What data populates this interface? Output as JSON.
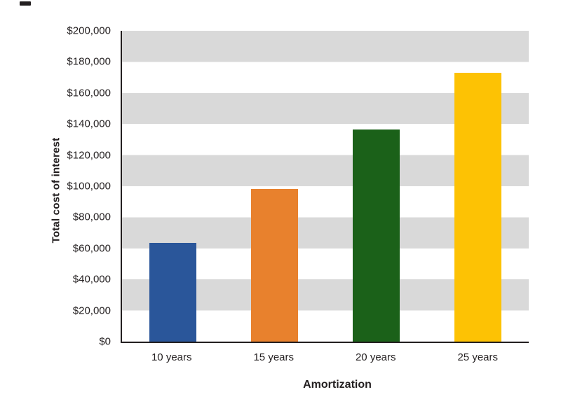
{
  "figure": {
    "background": "#ffffff",
    "text_color": "#231f20",
    "axis_color": "#231f20",
    "stripe_color": "#d9d9d9",
    "stripe_alt_color": "#ffffff"
  },
  "chart_data": {
    "type": "bar",
    "title": "",
    "categories": [
      "10 years",
      "15 years",
      "20 years",
      "25 years"
    ],
    "values": [
      63500,
      98000,
      136500,
      173000
    ],
    "bar_colors": [
      "#2a569a",
      "#e8812d",
      "#1b6119",
      "#fdc204"
    ],
    "xlabel": "Amortization",
    "ylabel": "Total cost of interest",
    "ylim": [
      0,
      200000
    ],
    "ytick_interval": 20000,
    "ytick_labels_top_to_bottom": [
      "$200,000",
      "$180,000",
      "$160,000",
      "$140,000",
      "$120,000",
      "$100,000",
      "$80,000",
      "$60,000",
      "$40,000",
      "$20,000",
      "$0"
    ],
    "gridlines": "alternating horizontal gray bands, gray from 180k-200k downward every other 20k band",
    "legend": "none"
  }
}
